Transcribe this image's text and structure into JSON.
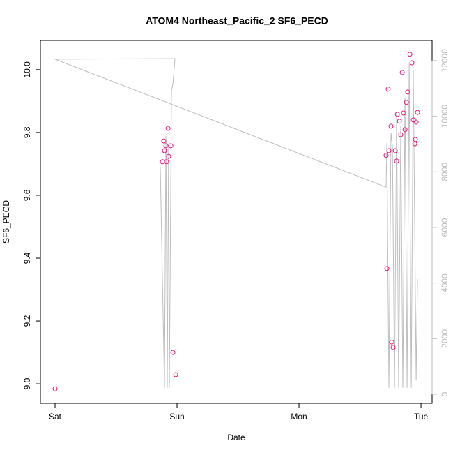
{
  "chart_data": {
    "type": "scatter-line",
    "title": "ATOM4 Northeast_Pacific_2 SF6_PECD",
    "x_label": "Date",
    "y_label": "SF6_PECD",
    "xlim": [
      -0.12,
      3.091
    ],
    "xticks": [
      {
        "value": 0,
        "label": "Sat"
      },
      {
        "value": 1,
        "label": "Sun"
      },
      {
        "value": 2,
        "label": "Mon"
      },
      {
        "value": 3,
        "label": "Tue"
      }
    ],
    "ylim": [
      8.938,
      10.093
    ],
    "yticks": [
      {
        "value": 9,
        "label": "9.0"
      },
      9.2,
      9.4,
      9.6,
      9.8,
      {
        "value": 10,
        "label": "10.0"
      }
    ],
    "y2lim": [
      -326,
      12726
    ],
    "y2ticks": [
      0,
      2000,
      4000,
      6000,
      8000,
      10000,
      12000
    ],
    "series": [
      {
        "kind": "points",
        "color": "#e8157a",
        "x": [
          0,
          0.88,
          0.891,
          0.897,
          0.909,
          0.914,
          0.926,
          0.931,
          0.949,
          0.966,
          0.989,
          2.714,
          2.72,
          2.731,
          2.737,
          2.754,
          2.76,
          2.771,
          2.789,
          2.8,
          2.806,
          2.823,
          2.834,
          2.846,
          2.857,
          2.869,
          2.88,
          2.891,
          2.909,
          2.926,
          2.937,
          2.949,
          2.954,
          2.96,
          2.971
        ],
        "values": [
          8.984,
          9.707,
          9.773,
          9.742,
          9.758,
          9.707,
          9.813,
          9.724,
          9.758,
          9.1,
          9.029,
          9.727,
          9.367,
          9.938,
          9.742,
          9.82,
          9.133,
          9.116,
          9.742,
          9.709,
          9.858,
          9.836,
          9.793,
          9.991,
          9.862,
          9.809,
          9.896,
          9.929,
          10.049,
          10.022,
          9.84,
          9.764,
          9.778,
          9.833,
          9.864
        ]
      },
      {
        "kind": "line",
        "axis": "y2",
        "color": "#bebebe",
        "x": [
          0.863,
          0.897,
          0.909,
          0.92,
          0.931,
          0.937,
          0.954,
          0.966,
          0.983,
          0,
          2.714,
          2.72,
          2.737,
          2.754,
          2.766,
          2.783,
          2.8,
          2.817,
          2.834,
          2.851,
          2.869,
          2.886,
          2.903,
          2.92,
          2.937,
          2.96,
          2.971
        ],
        "values": [
          8160,
          230,
          9290,
          230,
          8910,
          230,
          10920,
          11170,
          12070,
          12050,
          7450,
          9040,
          230,
          9410,
          8910,
          230,
          10160,
          230,
          9660,
          230,
          10670,
          230,
          11920,
          230,
          11670,
          500,
          4140
        ]
      }
    ]
  }
}
